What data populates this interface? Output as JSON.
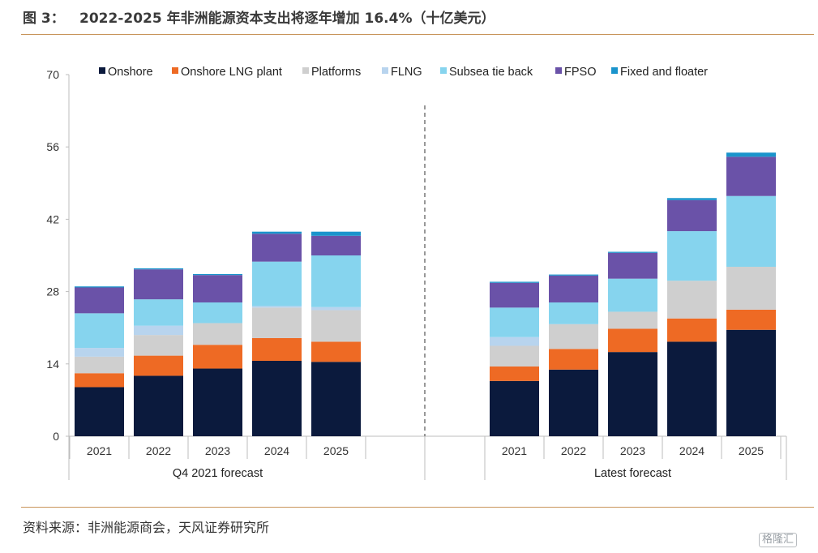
{
  "header": {
    "figure_label": "图 3：",
    "title": "2022-2025 年非洲能源资本支出将逐年增加 16.4%（十亿美元）"
  },
  "footer": {
    "source": "资料来源：非洲能源商会，天风证券研究所",
    "watermark": "格隆汇"
  },
  "chart_data": {
    "type": "bar",
    "stacked": true,
    "title": "",
    "xlabel": "",
    "ylabel": "",
    "ylim": [
      0,
      70
    ],
    "yticks": [
      0,
      14,
      28,
      42,
      56,
      70
    ],
    "grid": false,
    "legend_position": "top",
    "groups": [
      {
        "name": "Q4 2021 forecast",
        "categories": [
          "2021",
          "2022",
          "2023",
          "2024",
          "2025"
        ]
      },
      {
        "name": "Latest forecast",
        "categories": [
          "2021",
          "2022",
          "2023",
          "2024",
          "2025"
        ]
      }
    ],
    "series": [
      {
        "name": "Onshore",
        "color": "#0b1a3d",
        "values": [
          9.5,
          11.7,
          13.1,
          14.6,
          14.4,
          10.7,
          12.9,
          16.3,
          18.3,
          20.6
        ]
      },
      {
        "name": "Onshore LNG plant",
        "color": "#ee6a24",
        "values": [
          2.7,
          3.9,
          4.6,
          4.4,
          3.9,
          2.8,
          4.0,
          4.5,
          4.5,
          3.9
        ]
      },
      {
        "name": "Platforms",
        "color": "#cfcfcf",
        "values": [
          3.2,
          4.0,
          4.2,
          5.9,
          6.1,
          4.0,
          4.8,
          3.3,
          7.3,
          8.3
        ]
      },
      {
        "name": "FLNG",
        "color": "#b8d4ee",
        "values": [
          1.7,
          1.8,
          0.0,
          0.3,
          0.6,
          1.7,
          0.0,
          0.0,
          0.0,
          0.0
        ]
      },
      {
        "name": "Subsea tie back",
        "color": "#86d4ee",
        "values": [
          6.7,
          5.1,
          4.0,
          8.6,
          10.0,
          5.7,
          4.2,
          6.4,
          9.6,
          13.7
        ]
      },
      {
        "name": "FPSO",
        "color": "#6a52a8",
        "values": [
          5.0,
          5.8,
          5.3,
          5.4,
          3.8,
          4.8,
          5.2,
          5.0,
          6.0,
          7.6
        ]
      },
      {
        "name": "Fixed and floater",
        "color": "#1a94cc",
        "values": [
          0.2,
          0.2,
          0.2,
          0.4,
          0.8,
          0.2,
          0.2,
          0.2,
          0.4,
          0.8
        ]
      }
    ]
  }
}
